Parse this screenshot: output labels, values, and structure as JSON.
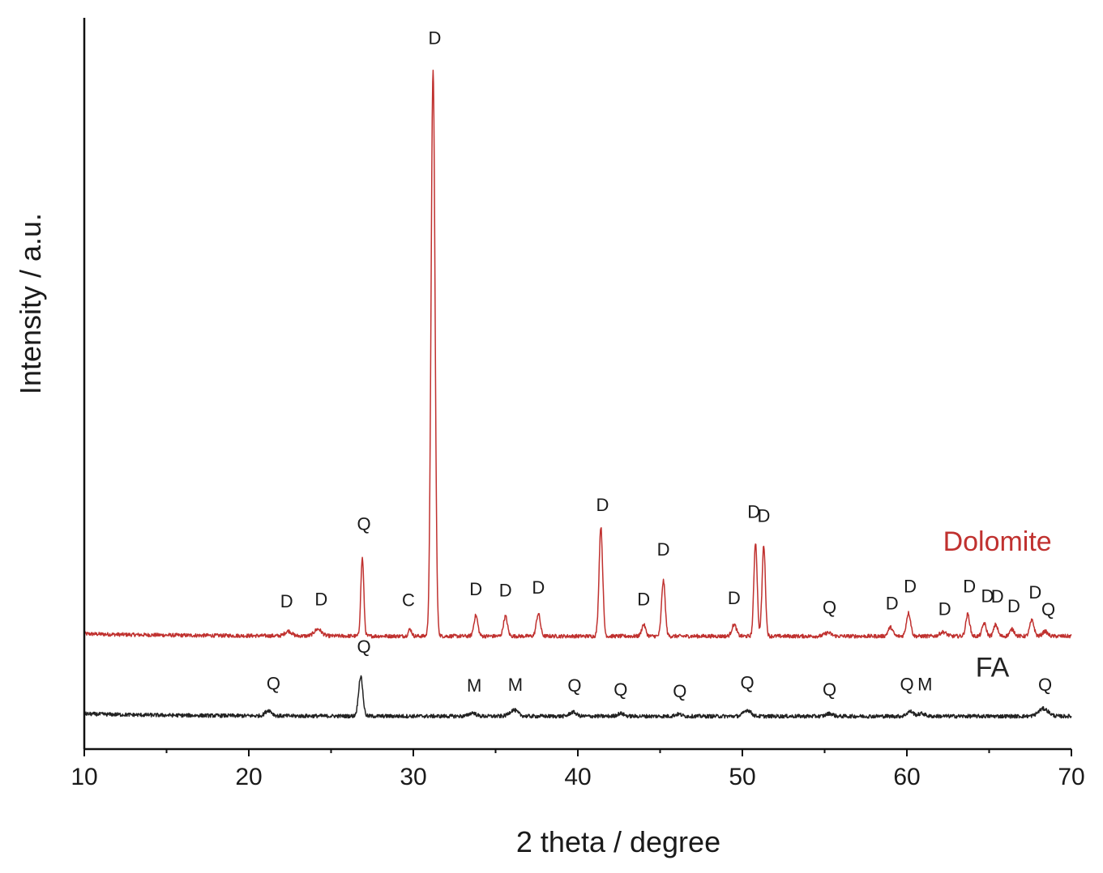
{
  "chart_data": {
    "type": "line",
    "title": "",
    "xlabel": "2 theta / degree",
    "ylabel": "Intensity / a.u.",
    "xlim": [
      10,
      70
    ],
    "ylim": [
      0,
      100
    ],
    "x_ticks": [
      10,
      20,
      30,
      40,
      50,
      60,
      70
    ],
    "grid": false,
    "legend": "inline-labels",
    "series": [
      {
        "name": "Dolomite",
        "color": "#c0312f",
        "label_color": "#c0312f",
        "baseline": 16.5,
        "peaks": [
          {
            "x": 22.4,
            "height": 0.7,
            "width": 0.2
          },
          {
            "x": 24.2,
            "height": 1.0,
            "width": 0.22
          },
          {
            "x": 26.9,
            "height": 11.4,
            "width": 0.09
          },
          {
            "x": 29.8,
            "height": 1.0,
            "width": 0.1
          },
          {
            "x": 31.2,
            "height": 82.5,
            "width": 0.12
          },
          {
            "x": 33.8,
            "height": 3.0,
            "width": 0.12
          },
          {
            "x": 35.6,
            "height": 2.9,
            "width": 0.12
          },
          {
            "x": 37.6,
            "height": 3.3,
            "width": 0.12
          },
          {
            "x": 41.4,
            "height": 16.0,
            "width": 0.11
          },
          {
            "x": 44.0,
            "height": 1.7,
            "width": 0.12
          },
          {
            "x": 45.2,
            "height": 8.1,
            "width": 0.11
          },
          {
            "x": 49.5,
            "height": 1.7,
            "width": 0.14
          },
          {
            "x": 50.8,
            "height": 13.7,
            "width": 0.1
          },
          {
            "x": 51.3,
            "height": 13.3,
            "width": 0.1
          },
          {
            "x": 55.2,
            "height": 0.5,
            "width": 0.2
          },
          {
            "x": 59.0,
            "height": 1.3,
            "width": 0.14
          },
          {
            "x": 60.1,
            "height": 3.4,
            "width": 0.13
          },
          {
            "x": 62.2,
            "height": 0.6,
            "width": 0.2
          },
          {
            "x": 63.7,
            "height": 3.2,
            "width": 0.12
          },
          {
            "x": 64.7,
            "height": 1.9,
            "width": 0.12
          },
          {
            "x": 65.4,
            "height": 1.7,
            "width": 0.12
          },
          {
            "x": 66.4,
            "height": 1.0,
            "width": 0.14
          },
          {
            "x": 67.6,
            "height": 2.3,
            "width": 0.13
          },
          {
            "x": 68.4,
            "height": 0.7,
            "width": 0.15
          }
        ],
        "peak_labels": [
          {
            "x": 22.3,
            "y": 20.7,
            "text": "D"
          },
          {
            "x": 24.4,
            "y": 21.0,
            "text": "D"
          },
          {
            "x": 27.0,
            "y": 32.0,
            "text": "Q"
          },
          {
            "x": 29.7,
            "y": 20.9,
            "text": "C"
          },
          {
            "x": 31.3,
            "y": 103.0,
            "text": "D"
          },
          {
            "x": 33.8,
            "y": 22.5,
            "text": "D"
          },
          {
            "x": 35.6,
            "y": 22.3,
            "text": "D"
          },
          {
            "x": 37.6,
            "y": 22.7,
            "text": "D"
          },
          {
            "x": 41.5,
            "y": 34.8,
            "text": "D"
          },
          {
            "x": 44.0,
            "y": 21.0,
            "text": "D"
          },
          {
            "x": 45.2,
            "y": 28.3,
            "text": "D"
          },
          {
            "x": 49.5,
            "y": 21.2,
            "text": "D"
          },
          {
            "x": 50.7,
            "y": 33.8,
            "text": "D"
          },
          {
            "x": 51.3,
            "y": 33.2,
            "text": "D"
          },
          {
            "x": 55.3,
            "y": 19.8,
            "text": "Q"
          },
          {
            "x": 59.1,
            "y": 20.4,
            "text": "D"
          },
          {
            "x": 60.2,
            "y": 22.9,
            "text": "D"
          },
          {
            "x": 62.3,
            "y": 19.6,
            "text": "D"
          },
          {
            "x": 63.8,
            "y": 22.9,
            "text": "D"
          },
          {
            "x": 64.9,
            "y": 21.5,
            "text": "D"
          },
          {
            "x": 65.5,
            "y": 21.4,
            "text": "D"
          },
          {
            "x": 66.5,
            "y": 20.0,
            "text": "D"
          },
          {
            "x": 67.8,
            "y": 22.0,
            "text": "D"
          },
          {
            "x": 68.6,
            "y": 19.5,
            "text": "Q"
          }
        ],
        "label_position": {
          "x": 65.5,
          "y": 29.0
        }
      },
      {
        "name": "FA",
        "color": "#222222",
        "label_color": "#222222",
        "baseline": 4.8,
        "peaks": [
          {
            "x": 21.2,
            "height": 0.8,
            "width": 0.2
          },
          {
            "x": 26.8,
            "height": 5.8,
            "width": 0.13
          },
          {
            "x": 33.6,
            "height": 0.5,
            "width": 0.2
          },
          {
            "x": 36.1,
            "height": 0.9,
            "width": 0.25
          },
          {
            "x": 39.7,
            "height": 0.6,
            "width": 0.2
          },
          {
            "x": 42.6,
            "height": 0.4,
            "width": 0.2
          },
          {
            "x": 46.1,
            "height": 0.3,
            "width": 0.2
          },
          {
            "x": 50.3,
            "height": 0.9,
            "width": 0.22
          },
          {
            "x": 55.3,
            "height": 0.4,
            "width": 0.2
          },
          {
            "x": 60.2,
            "height": 0.7,
            "width": 0.2
          },
          {
            "x": 60.9,
            "height": 0.4,
            "width": 0.2
          },
          {
            "x": 68.3,
            "height": 1.1,
            "width": 0.3
          }
        ],
        "peak_labels": [
          {
            "x": 21.5,
            "y": 8.7,
            "text": "Q"
          },
          {
            "x": 27.0,
            "y": 14.1,
            "text": "Q"
          },
          {
            "x": 33.7,
            "y": 8.4,
            "text": "M"
          },
          {
            "x": 36.2,
            "y": 8.5,
            "text": "M"
          },
          {
            "x": 39.8,
            "y": 8.4,
            "text": "Q"
          },
          {
            "x": 42.6,
            "y": 7.8,
            "text": "Q"
          },
          {
            "x": 46.2,
            "y": 7.6,
            "text": "Q"
          },
          {
            "x": 50.3,
            "y": 8.8,
            "text": "Q"
          },
          {
            "x": 55.3,
            "y": 7.8,
            "text": "Q"
          },
          {
            "x": 60.0,
            "y": 8.6,
            "text": "Q"
          },
          {
            "x": 61.1,
            "y": 8.6,
            "text": "M"
          },
          {
            "x": 68.4,
            "y": 8.5,
            "text": "Q"
          }
        ],
        "label_position": {
          "x": 65.2,
          "y": 10.6
        }
      }
    ]
  }
}
